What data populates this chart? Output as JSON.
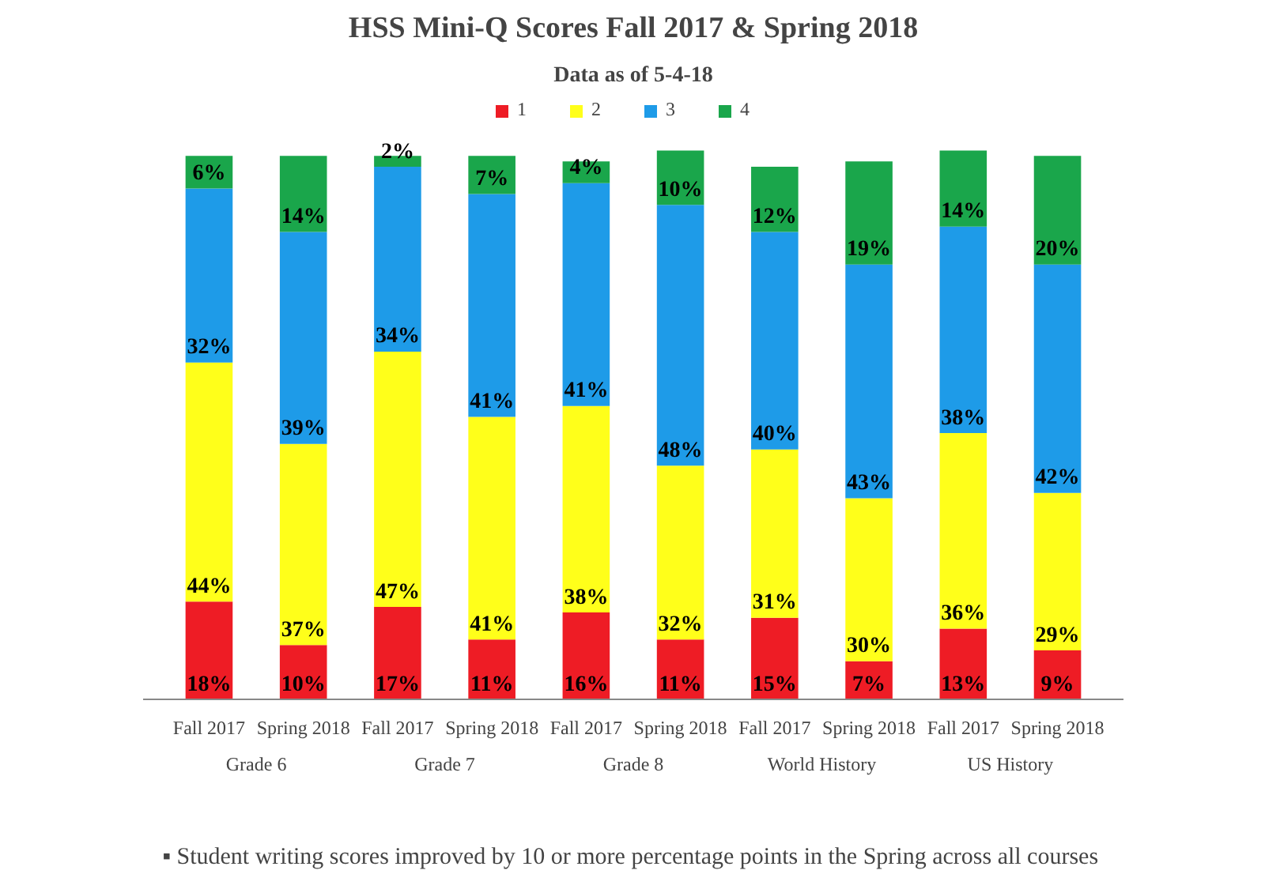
{
  "chart_data": {
    "type": "bar",
    "title": "HSS Mini-Q Scores Fall 2017 & Spring 2018",
    "subtitle": "Data as of 5-4-18",
    "categories": [
      "Fall 2017",
      "Spring 2018",
      "Fall 2017",
      "Spring 2018",
      "Fall 2017",
      "Spring 2018",
      "Fall 2017",
      "Spring 2018",
      "Fall 2017",
      "Spring 2018"
    ],
    "stacked": true,
    "legend": "top",
    "series": [
      {
        "name": "1",
        "color": "#ee1c25",
        "values": [
          18,
          10,
          17,
          11,
          16,
          11,
          15,
          7,
          13,
          9
        ],
        "value_labels": [
          "18%",
          "10%",
          "17%",
          "11%",
          "16%",
          "11%",
          "15%",
          "7%",
          "13%",
          "9%"
        ]
      },
      {
        "name": "2",
        "color": "#ffff1a",
        "values": [
          44,
          37,
          47,
          41,
          38,
          32,
          31,
          30,
          36,
          29
        ],
        "value_labels": [
          "44%",
          "37%",
          "47%",
          "41%",
          "38%",
          "32%",
          "31%",
          "30%",
          "36%",
          "29%"
        ]
      },
      {
        "name": "3",
        "color": "#1e9be8",
        "values": [
          32,
          39,
          34,
          41,
          41,
          48,
          40,
          43,
          38,
          42
        ],
        "value_labels": [
          "32%",
          "39%",
          "34%",
          "41%",
          "41%",
          "48%",
          "40%",
          "43%",
          "38%",
          "42%"
        ]
      },
      {
        "name": "4",
        "color": "#1aa64b",
        "values": [
          6,
          14,
          2,
          7,
          4,
          10,
          12,
          19,
          14,
          20
        ],
        "value_labels": [
          "6%",
          "14%",
          "2%",
          "7%",
          "4%",
          "10%",
          "12%",
          "19%",
          "14%",
          "20%"
        ]
      }
    ],
    "annotations": [
      "Grade 6",
      "Grade 7",
      "Grade 8",
      "World History",
      "US History",
      "▪  Student writing scores improved by 10 or more percentage points in the Spring across all courses"
    ]
  }
}
